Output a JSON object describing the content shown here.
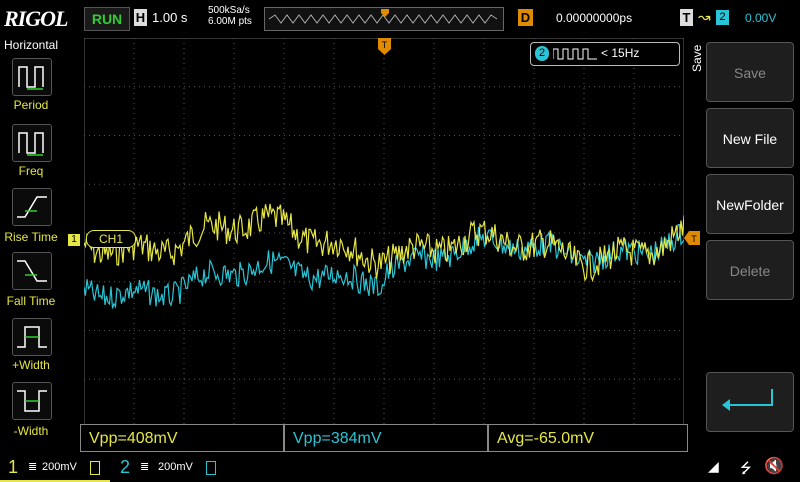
{
  "header": {
    "logo": "RIGOL",
    "run_status": "RUN",
    "horizontal_label": "H",
    "timebase": "1.00 s",
    "sample_rate": "500kSa/s",
    "memory_depth": "6.00M pts",
    "delay_label": "D",
    "delay": "0.00000000ps",
    "trigger_label": "T",
    "trigger_source": "2",
    "trigger_level": "0.00V"
  },
  "left_menu": {
    "title": "Horizontal",
    "items": [
      {
        "label": "Period",
        "icon": "period-icon"
      },
      {
        "label": "Freq",
        "icon": "freq-icon"
      },
      {
        "label": "Rise Time",
        "icon": "rise-time-icon"
      },
      {
        "label": "Fall Time",
        "icon": "fall-time-icon"
      },
      {
        "label": "+Width",
        "icon": "pos-width-icon"
      },
      {
        "label": "-Width",
        "icon": "neg-width-icon"
      }
    ]
  },
  "screen": {
    "ch1_marker": "1",
    "ch1_tag": "CH1",
    "freq_counter": {
      "channel": "2",
      "value": "< 15Hz"
    },
    "trigger_marker_top": "T",
    "trigger_marker_right": "T"
  },
  "measurements": [
    {
      "text": "Vpp=408mV",
      "color": "#e6e645"
    },
    {
      "text": "Vpp=384mV",
      "color": "#29c5d6"
    },
    {
      "text": "Avg=-65.0mV",
      "color": "#e6e645"
    }
  ],
  "footer": {
    "ch1_num": "1",
    "ch1_scale": "200mV",
    "ch2_num": "2",
    "ch2_scale": "200mV"
  },
  "right_menu": {
    "title": "Save",
    "items": [
      {
        "label": "Save",
        "enabled": false
      },
      {
        "label": "New File",
        "enabled": true
      },
      {
        "label": "NewFolder",
        "enabled": true
      },
      {
        "label": "Delete",
        "enabled": false
      },
      {
        "label": "",
        "icon": "return-icon"
      }
    ]
  },
  "colors": {
    "ch1": "#e6e645",
    "ch2": "#29c5d6",
    "trigger": "#e08a00",
    "run": "#33cc33"
  }
}
